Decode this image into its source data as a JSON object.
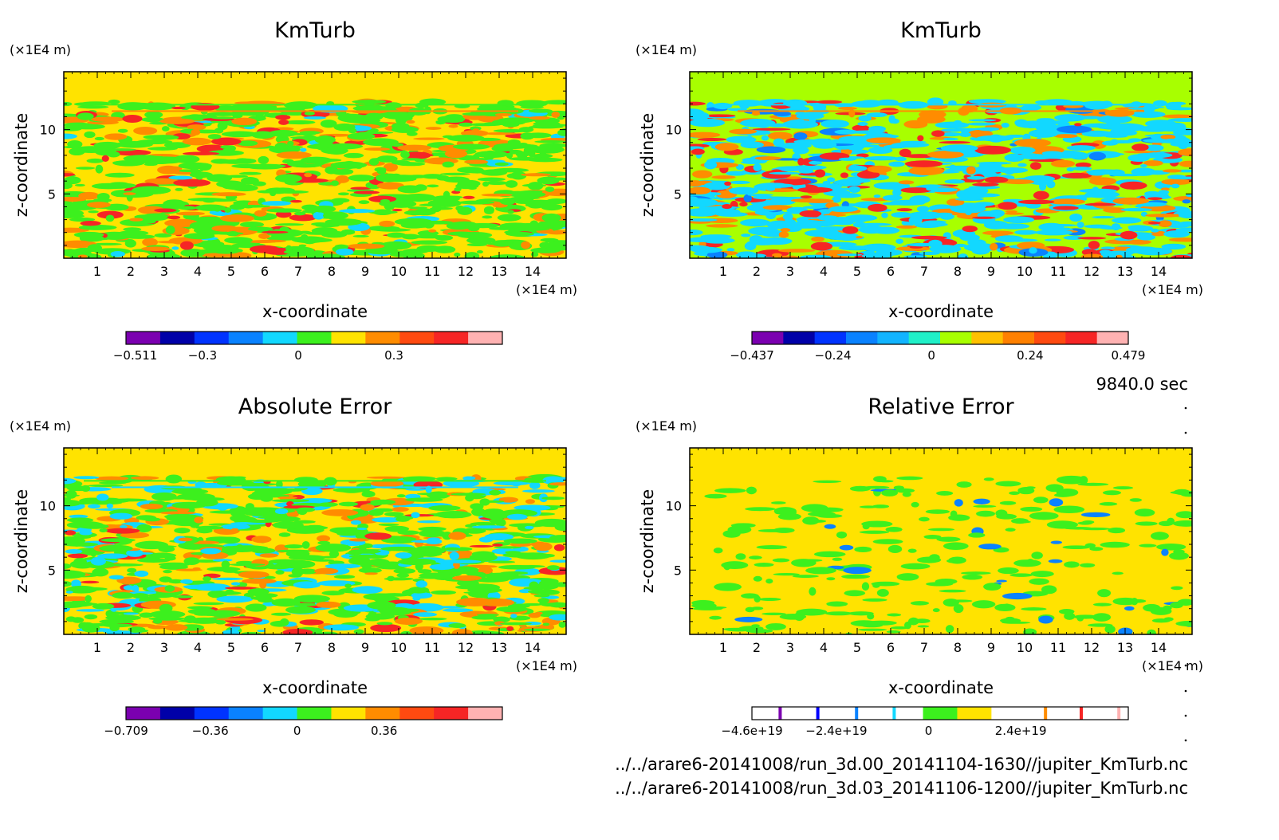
{
  "chart_data": [
    {
      "type": "heatmap",
      "title": "KmTurb",
      "xlabel": "x-coordinate",
      "ylabel": "z-coordinate",
      "x_unit": "(×1E4 m)",
      "y_unit": "(×1E4 m)",
      "xlim": [
        0,
        15
      ],
      "ylim": [
        0,
        14.5
      ],
      "x_ticks": [
        1,
        2,
        3,
        4,
        5,
        6,
        7,
        8,
        9,
        10,
        11,
        12,
        13,
        14
      ],
      "y_ticks": [
        5,
        10
      ],
      "colorbar": {
        "colors": [
          "#7b00b0",
          "#0000a8",
          "#0033ff",
          "#0a82ff",
          "#12d8ff",
          "#3cf01e",
          "#ffe300",
          "#ff8c00",
          "#ff4a10",
          "#f62525",
          "#ffb2b2"
        ],
        "tick_labels": [
          "−0.511",
          "−0.3",
          "0",
          "0.3"
        ],
        "tick_values": [
          -0.511,
          -0.3,
          0,
          0.3
        ],
        "range": [
          -0.54,
          0.64
        ]
      },
      "background_color": "#ffe300",
      "pattern_colors": [
        "#3cf01e",
        "#ff8c00",
        "#f62525",
        "#12d8ff"
      ]
    },
    {
      "type": "heatmap",
      "title": "KmTurb",
      "xlabel": "x-coordinate",
      "ylabel": "z-coordinate",
      "x_unit": "(×1E4 m)",
      "y_unit": "(×1E4 m)",
      "xlim": [
        0,
        15
      ],
      "ylim": [
        0,
        14.5
      ],
      "x_ticks": [
        1,
        2,
        3,
        4,
        5,
        6,
        7,
        8,
        9,
        10,
        11,
        12,
        13,
        14
      ],
      "y_ticks": [
        5,
        10
      ],
      "colorbar": {
        "colors": [
          "#7b00b0",
          "#0000a8",
          "#0033ff",
          "#0a82ff",
          "#12b4ff",
          "#20f0c8",
          "#a8ff00",
          "#ffc000",
          "#ff8000",
          "#ff4a10",
          "#f62525",
          "#ffb2b2"
        ],
        "tick_labels": [
          "−0.437",
          "−0.24",
          "0",
          "0.24",
          "0.479"
        ],
        "tick_values": [
          -0.437,
          -0.24,
          0,
          0.24,
          0.479
        ],
        "range": [
          -0.437,
          0.479
        ]
      },
      "background_color": "#a8ff00",
      "pattern_colors": [
        "#12d8ff",
        "#ff8c00",
        "#f62525",
        "#0a82ff"
      ]
    },
    {
      "type": "heatmap",
      "title": "Absolute Error",
      "xlabel": "x-coordinate",
      "ylabel": "z-coordinate",
      "x_unit": "(×1E4 m)",
      "y_unit": "(×1E4 m)",
      "xlim": [
        0,
        15
      ],
      "ylim": [
        0,
        14.5
      ],
      "x_ticks": [
        1,
        2,
        3,
        4,
        5,
        6,
        7,
        8,
        9,
        10,
        11,
        12,
        13,
        14
      ],
      "y_ticks": [
        5,
        10
      ],
      "colorbar": {
        "colors": [
          "#7b00b0",
          "#0000a8",
          "#0033ff",
          "#0a82ff",
          "#12d8ff",
          "#3cf01e",
          "#ffe300",
          "#ff8c00",
          "#ff4a10",
          "#f62525",
          "#ffb2b2"
        ],
        "tick_labels": [
          "−0.709",
          "−0.36",
          "0",
          "0.36"
        ],
        "tick_values": [
          -0.709,
          -0.36,
          0,
          0.36
        ],
        "range": [
          -0.709,
          0.85
        ]
      },
      "background_color": "#ffe300",
      "pattern_colors": [
        "#3cf01e",
        "#12d8ff",
        "#ff8c00",
        "#f62525"
      ]
    },
    {
      "type": "heatmap",
      "title": "Relative Error",
      "xlabel": "x-coordinate",
      "ylabel": "z-coordinate",
      "x_unit": "(×1E4 m)",
      "y_unit": "(×1E4 m)",
      "xlim": [
        0,
        15
      ],
      "ylim": [
        0,
        14.5
      ],
      "x_ticks": [
        1,
        2,
        3,
        4,
        5,
        6,
        7,
        8,
        9,
        10,
        11,
        12,
        13,
        14
      ],
      "y_ticks": [
        5,
        10
      ],
      "colorbar": {
        "colors": [
          "#ffffff",
          "#ffffff",
          "#ffffff",
          "#ffffff",
          "#ffffff",
          "#3cf01e",
          "#ffe300",
          "#ffffff",
          "#ffffff",
          "#ffffff",
          "#ffffff"
        ],
        "line_marks": [
          [
            0.075,
            "#7b00b0"
          ],
          [
            0.175,
            "#0000ff"
          ],
          [
            0.278,
            "#0a82ff"
          ],
          [
            0.378,
            "#12d8ff"
          ],
          [
            0.78,
            "#ff8c00"
          ],
          [
            0.875,
            "#f62525"
          ],
          [
            0.975,
            "#ffb2b2"
          ]
        ],
        "tick_labels": [
          "−4.6e+19",
          "−2.4e+19",
          "0",
          "2.4e+19"
        ],
        "tick_values": [
          -4.6e+19,
          -2.4e+19,
          0,
          2.4e+19
        ],
        "range": [
          -4.6e+19,
          5.2e+19
        ]
      },
      "background_color": "#ffe300",
      "pattern_colors": [
        "#3cf01e",
        "#0a82ff"
      ]
    }
  ],
  "time_label": "9840.0 sec",
  "files": [
    "../../arare6-20141008/run_3d.00_20141104-1630//jupiter_KmTurb.nc",
    "../../arare6-20141008/run_3d.03_20141106-1200//jupiter_KmTurb.nc"
  ]
}
